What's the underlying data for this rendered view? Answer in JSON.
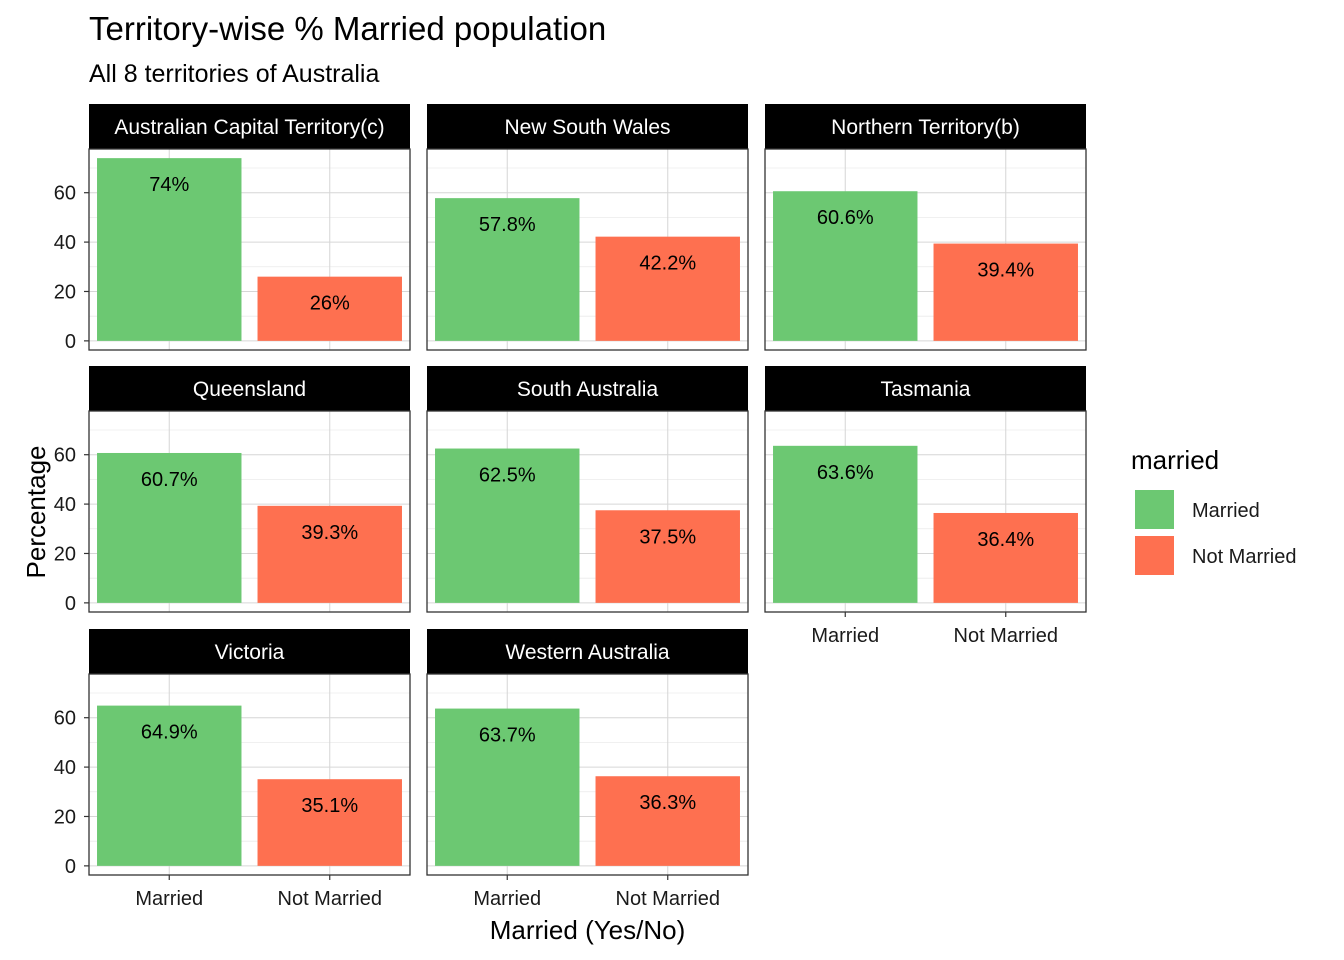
{
  "chart_data": {
    "type": "bar",
    "title": "Territory-wise % Married population",
    "subtitle": "All 8 territories of Australia",
    "xlabel": "Married (Yes/No)",
    "ylabel": "Percentage",
    "categories": [
      "Married",
      "Not Married"
    ],
    "yticks": [
      0,
      20,
      40,
      60
    ],
    "ylim": [
      -3.7,
      77.7
    ],
    "grid": true,
    "legend": {
      "title": "married",
      "position": "right",
      "entries": [
        {
          "label": "Married",
          "color": "#6CC872"
        },
        {
          "label": "Not Married",
          "color": "#FE7050"
        }
      ]
    },
    "panels": [
      {
        "name": "Australian Capital Territory(c)",
        "values": [
          74,
          26
        ],
        "labels": [
          "74%",
          "26%"
        ]
      },
      {
        "name": "New South Wales",
        "values": [
          57.8,
          42.2
        ],
        "labels": [
          "57.8%",
          "42.2%"
        ]
      },
      {
        "name": "Northern Territory(b)",
        "values": [
          60.6,
          39.4
        ],
        "labels": [
          "60.6%",
          "39.4%"
        ]
      },
      {
        "name": "Queensland",
        "values": [
          60.7,
          39.3
        ],
        "labels": [
          "60.7%",
          "39.3%"
        ]
      },
      {
        "name": "South Australia",
        "values": [
          62.5,
          37.5
        ],
        "labels": [
          "62.5%",
          "37.5%"
        ]
      },
      {
        "name": "Tasmania",
        "values": [
          63.6,
          36.4
        ],
        "labels": [
          "63.6%",
          "36.4%"
        ]
      },
      {
        "name": "Victoria",
        "values": [
          64.9,
          35.1
        ],
        "labels": [
          "64.9%",
          "35.1%"
        ]
      },
      {
        "name": "Western Australia",
        "values": [
          63.7,
          36.3
        ],
        "labels": [
          "63.7%",
          "36.3%"
        ]
      }
    ]
  }
}
